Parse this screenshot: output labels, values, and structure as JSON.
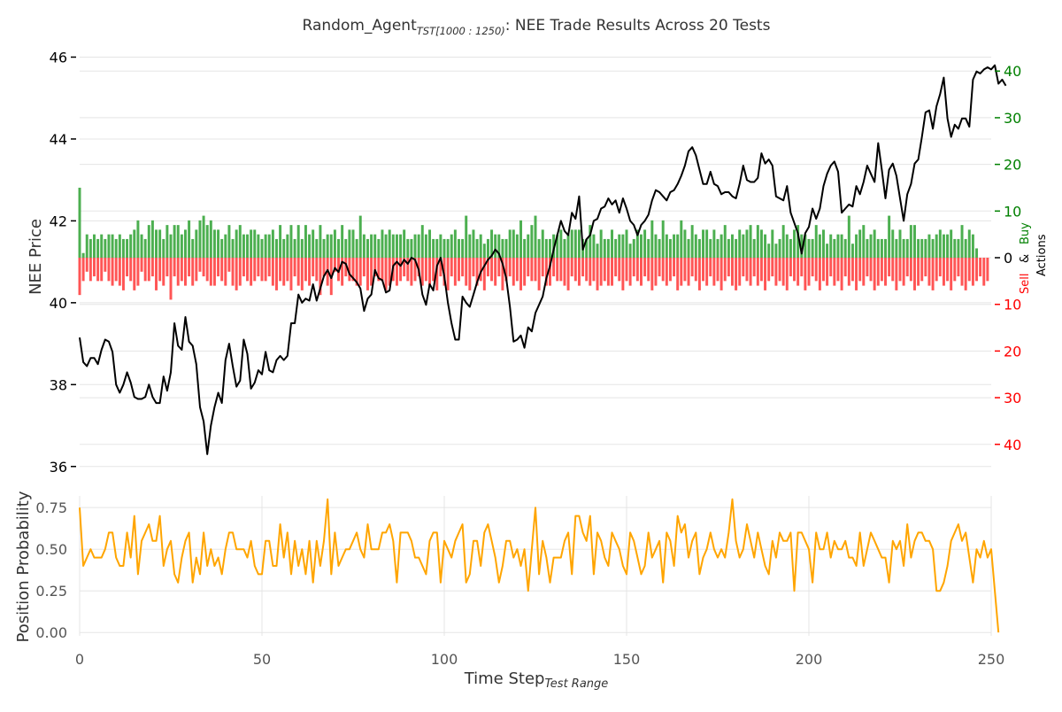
{
  "title": {
    "prefix": "Random_Agent",
    "subscript": "TST[1000 : 1250)",
    "suffix": ": NEE Trade Results Across 20 Tests"
  },
  "colors": {
    "price_line": "#000000",
    "buy": "#4caf50",
    "sell": "#ff5555",
    "probability": "#ffa500",
    "buy_text": "#008000",
    "sell_text": "#ff0000",
    "grid": "#e5e5e5"
  },
  "chart_data": [
    {
      "type": "line",
      "panel": "top",
      "title": "Random_Agent TST[1000 : 1250): NEE Trade Results Across 20 Tests",
      "xlabel": "",
      "ylabel": "NEE Price",
      "xlim": [
        0,
        250
      ],
      "ylim": [
        35.8,
        46.4
      ],
      "yticks": [
        36,
        38,
        40,
        42,
        44,
        46
      ],
      "grid": true,
      "series": [
        {
          "name": "",
          "x_start": 0,
          "x_step": 1,
          "values": [
            39.15,
            38.55,
            38.45,
            38.65,
            38.65,
            38.5,
            38.85,
            39.1,
            39.05,
            38.8,
            38.0,
            37.8,
            38.0,
            38.3,
            38.05,
            37.7,
            37.65,
            37.65,
            37.7,
            38.0,
            37.7,
            37.55,
            37.55,
            38.2,
            37.85,
            38.3,
            39.5,
            38.95,
            38.85,
            39.65,
            39.05,
            38.95,
            38.5,
            37.45,
            37.1,
            36.3,
            37.0,
            37.45,
            37.8,
            37.55,
            38.6,
            39.0,
            38.45,
            37.95,
            38.1,
            39.1,
            38.75,
            37.9,
            38.05,
            38.35,
            38.25,
            38.8,
            38.35,
            38.3,
            38.6,
            38.7,
            38.6,
            38.7,
            39.5,
            39.5,
            40.2,
            40.0,
            40.1,
            40.05,
            40.45,
            40.05,
            40.35,
            40.65,
            40.8,
            40.6,
            40.85,
            40.75,
            41.0,
            40.95,
            40.7,
            40.6,
            40.5,
            40.35,
            39.8,
            40.1,
            40.2,
            40.8,
            40.6,
            40.55,
            40.25,
            40.3,
            40.9,
            41.0,
            40.9,
            41.05,
            40.95,
            41.1,
            41.05,
            40.8,
            40.2,
            39.95,
            40.45,
            40.3,
            40.9,
            41.1,
            40.65,
            40.0,
            39.5,
            39.1,
            39.1,
            40.15,
            40.0,
            39.9,
            40.2,
            40.5,
            40.75,
            40.9,
            41.05,
            41.15,
            41.3,
            41.2,
            40.95,
            40.6,
            39.9,
            39.05,
            39.1,
            39.2,
            38.9,
            39.4,
            39.3,
            39.75,
            39.95,
            40.15,
            40.6,
            40.9,
            41.3,
            41.65,
            42.0,
            41.75,
            41.65,
            42.2,
            42.05,
            42.6,
            41.3,
            41.55,
            41.65,
            42.0,
            42.05,
            42.3,
            42.35,
            42.55,
            42.4,
            42.5,
            42.2,
            42.55,
            42.3,
            42.0,
            41.9,
            41.65,
            41.9,
            42.0,
            42.15,
            42.5,
            42.75,
            42.7,
            42.6,
            42.5,
            42.7,
            42.75,
            42.9,
            43.1,
            43.35,
            43.7,
            43.8,
            43.6,
            43.25,
            42.9,
            42.9,
            43.2,
            42.9,
            42.85,
            42.65,
            42.7,
            42.7,
            42.6,
            42.55,
            42.9,
            43.35,
            43.0,
            42.95,
            42.95,
            43.05,
            43.65,
            43.4,
            43.5,
            43.35,
            42.6,
            42.55,
            42.5,
            42.85,
            42.2,
            41.95,
            41.7,
            41.2,
            41.7,
            41.85,
            42.3,
            42.05,
            42.3,
            42.85,
            43.15,
            43.35,
            43.45,
            43.2,
            42.2,
            42.3,
            42.4,
            42.35,
            42.85,
            42.65,
            42.95,
            43.35,
            43.15,
            42.95,
            43.9,
            43.25,
            42.55,
            43.25,
            43.4,
            43.1,
            42.55,
            42.0,
            42.65,
            42.9,
            43.4,
            43.5,
            44.05,
            44.65,
            44.7,
            44.25,
            44.8,
            45.1,
            45.5,
            44.5,
            44.05,
            44.35,
            44.25,
            44.5,
            44.5,
            44.3,
            45.45,
            45.65,
            45.6,
            45.7,
            45.75,
            45.7,
            45.8,
            45.35,
            45.45,
            45.3
          ]
        }
      ]
    },
    {
      "type": "bar",
      "panel": "top-right-axis",
      "ylabel": "Sell & Buy Actions",
      "ylabel_parts": [
        "Sell",
        "&",
        "Buy",
        "Actions"
      ],
      "ylim": [
        -46.5,
        46.5
      ],
      "yticks": [
        40,
        30,
        20,
        10,
        0,
        10,
        20,
        30,
        40
      ],
      "ytick_values": [
        40,
        30,
        20,
        10,
        0,
        -10,
        -20,
        -30,
        -40
      ],
      "xlim": [
        0,
        250
      ],
      "series": [
        {
          "name": "Buy",
          "x_start": 0,
          "x_step": 1,
          "values": [
            15,
            1,
            5,
            4,
            5,
            4,
            5,
            4,
            5,
            5,
            4,
            5,
            4,
            4,
            5,
            6,
            8,
            5,
            4,
            7,
            8,
            6,
            6,
            4,
            7,
            5,
            7,
            7,
            5,
            6,
            8,
            4,
            6,
            8,
            9,
            7,
            8,
            6,
            6,
            4,
            5,
            7,
            4,
            6,
            7,
            5,
            5,
            6,
            6,
            5,
            4,
            5,
            5,
            6,
            4,
            7,
            4,
            5,
            7,
            4,
            7,
            4,
            7,
            5,
            6,
            4,
            7,
            4,
            5,
            5,
            6,
            4,
            7,
            4,
            6,
            6,
            4,
            9,
            5,
            4,
            5,
            5,
            4,
            6,
            5,
            6,
            5,
            5,
            5,
            6,
            4,
            4,
            5,
            5,
            7,
            5,
            6,
            4,
            4,
            5,
            4,
            4,
            5,
            6,
            4,
            4,
            9,
            5,
            6,
            4,
            5,
            3,
            4,
            6,
            5,
            5,
            4,
            4,
            6,
            6,
            5,
            8,
            4,
            5,
            7,
            9,
            4,
            6,
            4,
            4,
            5,
            5,
            6,
            4,
            5,
            6,
            6,
            6,
            4,
            4,
            7,
            5,
            3,
            6,
            4,
            4,
            6,
            4,
            5,
            5,
            6,
            3,
            4,
            6,
            5,
            6,
            4,
            8,
            5,
            4,
            8,
            5,
            4,
            5,
            5,
            8,
            6,
            4,
            7,
            5,
            4,
            6,
            6,
            4,
            6,
            4,
            5,
            7,
            4,
            5,
            4,
            6,
            5,
            6,
            7,
            4,
            7,
            6,
            5,
            3,
            6,
            3,
            4,
            7,
            5,
            4,
            6,
            7,
            5,
            5,
            4,
            4,
            7,
            5,
            6,
            3,
            5,
            4,
            5,
            5,
            4,
            9,
            3,
            5,
            6,
            7,
            4,
            5,
            6,
            4,
            4,
            4,
            9,
            6,
            4,
            6,
            4,
            4,
            7,
            7,
            4,
            4,
            4,
            5,
            4,
            5,
            6,
            5,
            5,
            6,
            4,
            4,
            7,
            4,
            6,
            5,
            2
          ]
        },
        {
          "name": "Sell",
          "x_start": 0,
          "x_step": 1,
          "values": [
            -8,
            -5,
            -3,
            -5,
            -4,
            -5,
            -5,
            -3,
            -5,
            -6,
            -5,
            -6,
            -7,
            -4,
            -5,
            -7,
            -6,
            -3,
            -5,
            -5,
            -4,
            -7,
            -5,
            -6,
            -4,
            -9,
            -4,
            -6,
            -5,
            -6,
            -4,
            -6,
            -5,
            -3,
            -4,
            -5,
            -6,
            -6,
            -4,
            -5,
            -6,
            -3,
            -6,
            -7,
            -6,
            -4,
            -5,
            -6,
            -5,
            -4,
            -5,
            -5,
            -4,
            -6,
            -7,
            -5,
            -6,
            -5,
            -7,
            -4,
            -6,
            -7,
            -5,
            -6,
            -4,
            -5,
            -8,
            -4,
            -6,
            -8,
            -3,
            -5,
            -6,
            -4,
            -5,
            -5,
            -6,
            -6,
            -4,
            -7,
            -6,
            -4,
            -5,
            -5,
            -7,
            -6,
            -5,
            -6,
            -5,
            -4,
            -5,
            -6,
            -5,
            -4,
            -6,
            -5,
            -6,
            -5,
            -7,
            -4,
            -6,
            -7,
            -4,
            -6,
            -5,
            -4,
            -6,
            -7,
            -4,
            -6,
            -5,
            -7,
            -4,
            -5,
            -6,
            -4,
            -7,
            -5,
            -4,
            -6,
            -5,
            -7,
            -6,
            -4,
            -5,
            -5,
            -7,
            -4,
            -6,
            -6,
            -4,
            -5,
            -5,
            -6,
            -7,
            -4,
            -5,
            -6,
            -4,
            -5,
            -6,
            -5,
            -7,
            -6,
            -5,
            -6,
            -6,
            -4,
            -5,
            -7,
            -5,
            -6,
            -4,
            -5,
            -6,
            -4,
            -5,
            -7,
            -6,
            -4,
            -5,
            -6,
            -5,
            -4,
            -7,
            -6,
            -5,
            -6,
            -4,
            -5,
            -7,
            -5,
            -6,
            -4,
            -6,
            -5,
            -7,
            -5,
            -4,
            -6,
            -7,
            -6,
            -4,
            -5,
            -6,
            -4,
            -6,
            -5,
            -7,
            -5,
            -4,
            -6,
            -5,
            -6,
            -7,
            -4,
            -5,
            -6,
            -4,
            -7,
            -6,
            -4,
            -5,
            -7,
            -5,
            -6,
            -4,
            -6,
            -5,
            -7,
            -4,
            -6,
            -5,
            -7,
            -5,
            -6,
            -4,
            -5,
            -7,
            -6,
            -5,
            -6,
            -4,
            -5,
            -7,
            -5,
            -6,
            -4,
            -5,
            -7,
            -6,
            -5,
            -4,
            -6,
            -7,
            -5,
            -4,
            -6,
            -5,
            -7,
            -5,
            -4,
            -6,
            -7,
            -5,
            -6,
            -5,
            -4,
            -6,
            -5
          ]
        }
      ]
    },
    {
      "type": "line",
      "panel": "bottom",
      "xlabel": "Time Step",
      "xlabel_subscript": "Test Range",
      "ylabel": "Position Probability",
      "xlim": [
        0,
        250
      ],
      "ylim": [
        -0.02,
        0.82
      ],
      "xticks": [
        0,
        50,
        100,
        150,
        200,
        250
      ],
      "yticks": [
        0.0,
        0.25,
        0.5,
        0.75
      ],
      "ytick_labels": [
        "0.00",
        "0.25",
        "0.50",
        "0.75"
      ],
      "grid": true,
      "series": [
        {
          "name": "",
          "x_start": 0,
          "x_step": 1,
          "values": [
            0.75,
            0.4,
            0.45,
            0.5,
            0.45,
            0.45,
            0.45,
            0.5,
            0.6,
            0.6,
            0.45,
            0.4,
            0.4,
            0.6,
            0.45,
            0.7,
            0.35,
            0.55,
            0.6,
            0.65,
            0.55,
            0.55,
            0.7,
            0.4,
            0.5,
            0.55,
            0.35,
            0.3,
            0.45,
            0.55,
            0.6,
            0.3,
            0.45,
            0.35,
            0.6,
            0.4,
            0.5,
            0.4,
            0.45,
            0.35,
            0.5,
            0.6,
            0.6,
            0.5,
            0.5,
            0.5,
            0.45,
            0.55,
            0.4,
            0.35,
            0.35,
            0.55,
            0.55,
            0.4,
            0.4,
            0.65,
            0.45,
            0.6,
            0.35,
            0.55,
            0.4,
            0.5,
            0.35,
            0.55,
            0.3,
            0.55,
            0.4,
            0.55,
            0.8,
            0.35,
            0.6,
            0.4,
            0.45,
            0.5,
            0.5,
            0.55,
            0.6,
            0.5,
            0.45,
            0.65,
            0.5,
            0.5,
            0.5,
            0.6,
            0.6,
            0.65,
            0.55,
            0.3,
            0.6,
            0.6,
            0.6,
            0.55,
            0.45,
            0.45,
            0.4,
            0.35,
            0.55,
            0.6,
            0.6,
            0.3,
            0.55,
            0.5,
            0.45,
            0.55,
            0.6,
            0.65,
            0.3,
            0.35,
            0.55,
            0.55,
            0.4,
            0.6,
            0.65,
            0.55,
            0.45,
            0.3,
            0.4,
            0.55,
            0.55,
            0.45,
            0.5,
            0.4,
            0.5,
            0.25,
            0.5,
            0.75,
            0.35,
            0.55,
            0.45,
            0.3,
            0.45,
            0.45,
            0.45,
            0.55,
            0.6,
            0.35,
            0.7,
            0.7,
            0.6,
            0.55,
            0.7,
            0.35,
            0.6,
            0.55,
            0.45,
            0.4,
            0.6,
            0.55,
            0.5,
            0.4,
            0.35,
            0.6,
            0.55,
            0.45,
            0.35,
            0.4,
            0.6,
            0.45,
            0.5,
            0.55,
            0.3,
            0.6,
            0.55,
            0.4,
            0.7,
            0.6,
            0.65,
            0.45,
            0.55,
            0.6,
            0.35,
            0.45,
            0.5,
            0.6,
            0.5,
            0.45,
            0.5,
            0.45,
            0.6,
            0.8,
            0.55,
            0.45,
            0.5,
            0.65,
            0.55,
            0.45,
            0.6,
            0.5,
            0.4,
            0.35,
            0.55,
            0.45,
            0.6,
            0.55,
            0.55,
            0.6,
            0.25,
            0.6,
            0.6,
            0.55,
            0.5,
            0.3,
            0.6,
            0.5,
            0.5,
            0.6,
            0.45,
            0.55,
            0.5,
            0.5,
            0.55,
            0.45,
            0.45,
            0.4,
            0.6,
            0.4,
            0.5,
            0.6,
            0.55,
            0.5,
            0.45,
            0.45,
            0.3,
            0.55,
            0.5,
            0.55,
            0.4,
            0.65,
            0.45,
            0.55,
            0.6,
            0.6,
            0.55,
            0.55,
            0.5,
            0.25,
            0.25,
            0.3,
            0.4,
            0.55,
            0.6,
            0.65,
            0.55,
            0.6,
            0.45,
            0.3,
            0.5,
            0.45,
            0.55,
            0.45,
            0.5,
            0.25,
            0.0
          ]
        }
      ]
    }
  ]
}
